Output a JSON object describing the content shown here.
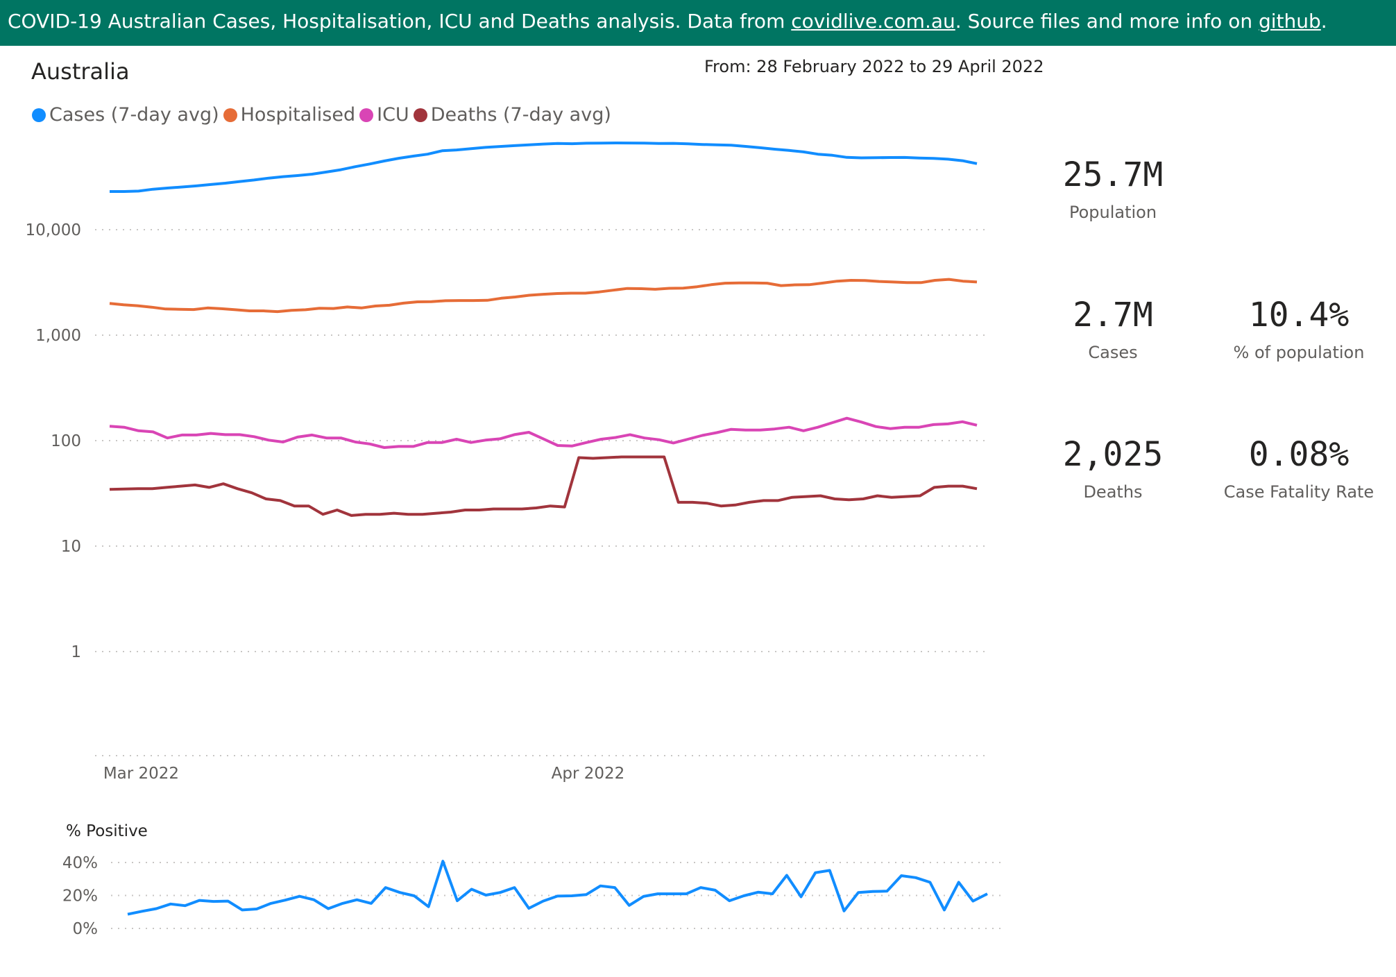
{
  "banner": {
    "text_before": "COVID-19 Australian Cases, Hospitalisation, ICU and Deaths analysis. Data from ",
    "link1": "covidlive.com.au",
    "text_mid": ". Source files and more info on ",
    "link2": "github",
    "text_after": "."
  },
  "region_title": "Australia",
  "date_range": "From: 28 February 2022 to 29 April 2022",
  "legend": [
    {
      "label": "Cases (7-day avg)",
      "color": "#118DFF"
    },
    {
      "label": "Hospitalised",
      "color": "#E66C37"
    },
    {
      "label": "ICU",
      "color": "#D945B5"
    },
    {
      "label": "Deaths (7-day avg)",
      "color": "#A1343C"
    }
  ],
  "cards": {
    "population": {
      "value": "25.7M",
      "label": "Population"
    },
    "cases": {
      "value": "2.7M",
      "label": "Cases"
    },
    "pct_population": {
      "value": "10.4%",
      "label": "% of population"
    },
    "deaths": {
      "value": "2,025",
      "label": "Deaths"
    },
    "cfr": {
      "value": "0.08%",
      "label": "Case Fatality Rate"
    }
  },
  "chart_data": [
    {
      "type": "line",
      "scale": "log",
      "y_ticks": [
        "10,000",
        "1,000",
        "100",
        "10",
        "1"
      ],
      "x_ticks": [
        "Mar 2022",
        "Apr 2022"
      ],
      "x_start": "2022-02-28",
      "grid": true,
      "legend_placement": "top-left",
      "series": [
        {
          "name": "Cases (7-day avg)",
          "color": "#118DFF",
          "values": [
            23000,
            23000,
            23200,
            24200,
            24800,
            25400,
            26000,
            26800,
            27600,
            28600,
            29600,
            30800,
            31800,
            32600,
            33600,
            35200,
            37000,
            39600,
            42000,
            44800,
            47500,
            49800,
            52000,
            56000,
            57000,
            58600,
            60300,
            61500,
            62600,
            63700,
            64800,
            65600,
            65300,
            66000,
            66200,
            66400,
            66300,
            66100,
            65700,
            65800,
            65200,
            64300,
            63700,
            63300,
            61600,
            59800,
            58000,
            56400,
            54600,
            52000,
            50700,
            48500,
            48000,
            48100,
            48300,
            48400,
            47800,
            47400,
            46600,
            45100,
            42300
          ]
        },
        {
          "name": "Hospitalised",
          "color": "#E66C37",
          "values": [
            2000,
            1940,
            1900,
            1840,
            1770,
            1760,
            1750,
            1810,
            1780,
            1740,
            1700,
            1700,
            1670,
            1720,
            1740,
            1800,
            1790,
            1850,
            1810,
            1890,
            1920,
            2010,
            2070,
            2080,
            2120,
            2130,
            2130,
            2140,
            2240,
            2300,
            2390,
            2440,
            2480,
            2500,
            2500,
            2570,
            2670,
            2770,
            2760,
            2720,
            2780,
            2790,
            2880,
            3010,
            3110,
            3130,
            3130,
            3110,
            2950,
            3000,
            3010,
            3120,
            3250,
            3310,
            3300,
            3230,
            3190,
            3150,
            3150,
            3310,
            3380,
            3250,
            3190
          ]
        },
        {
          "name": "ICU",
          "color": "#D945B5",
          "values": [
            137,
            134,
            124,
            121,
            106,
            113,
            113,
            117,
            114,
            114,
            109,
            101,
            97,
            108,
            113,
            106,
            106,
            97,
            93,
            86,
            88,
            88,
            96,
            96,
            103,
            96,
            101,
            104,
            114,
            120,
            104,
            90,
            89,
            96,
            103,
            107,
            114,
            106,
            102,
            95,
            103,
            112,
            119,
            128,
            126,
            126,
            129,
            134,
            124,
            134,
            148,
            163,
            150,
            136,
            130,
            134,
            134,
            142,
            144,
            151,
            140
          ]
        },
        {
          "name": "Deaths (7-day avg)",
          "color": "#A1343C",
          "values": [
            34.5,
            34.8,
            35,
            35,
            36,
            37,
            38,
            36,
            39,
            35,
            32,
            28,
            27,
            24,
            24,
            20,
            22,
            19.5,
            20,
            20,
            20.5,
            20,
            20,
            20.5,
            21,
            22,
            22,
            22.5,
            22.5,
            22.5,
            23,
            24,
            23.5,
            69,
            68,
            69,
            70,
            70,
            70,
            70,
            26,
            26,
            25.5,
            24,
            24.5,
            26,
            27,
            27,
            29,
            29.5,
            30,
            28,
            27.5,
            28,
            30,
            29,
            29.5,
            30,
            36,
            37,
            37,
            35
          ]
        }
      ]
    },
    {
      "type": "line",
      "title": "% Positive",
      "y_ticks": [
        "40%",
        "20%",
        "0%"
      ],
      "ylim": [
        0,
        45
      ],
      "grid": true,
      "series": [
        {
          "name": "% Positive",
          "color": "#118DFF",
          "values": [
            8.6,
            10.4,
            12,
            14.8,
            13.8,
            17,
            16.4,
            16.6,
            11.2,
            11.8,
            15.2,
            17.2,
            19.5,
            17.4,
            12,
            15.2,
            17.4,
            15.2,
            24.8,
            21.8,
            19.8,
            13.2,
            40.8,
            16.8,
            23.8,
            20.2,
            21.8,
            24.8,
            12.2,
            16.6,
            19.6,
            19.8,
            20.5,
            25.8,
            24.8,
            14,
            19.4,
            21,
            21,
            21,
            24.8,
            23.2,
            16.8,
            19.8,
            22,
            21,
            32.2,
            19.2,
            33.8,
            35.2,
            10.6,
            21.8,
            22.4,
            22.6,
            32,
            30.8,
            28,
            11.2,
            28,
            16.6,
            21
          ]
        }
      ]
    }
  ]
}
